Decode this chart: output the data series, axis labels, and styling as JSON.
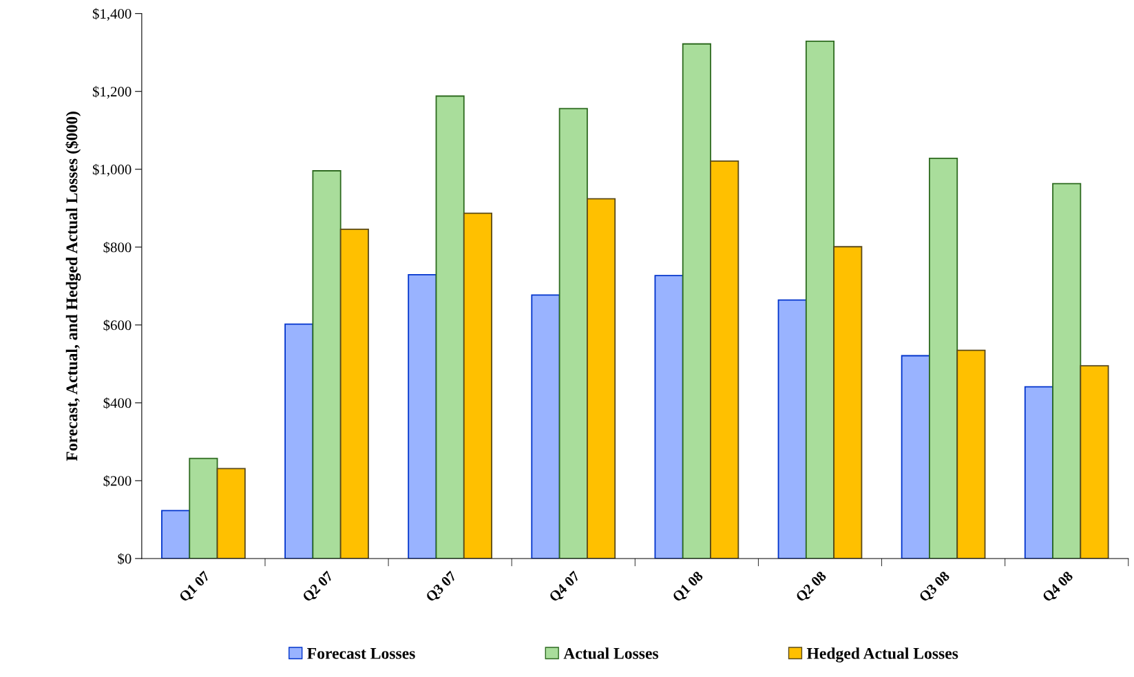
{
  "chart_data": {
    "type": "bar",
    "ylabel": "Forecast, Actual, and Hedged Actual Losses ($000)",
    "categories": [
      "Q1 07",
      "Q2 07",
      "Q3 07",
      "Q4 07",
      "Q1 08",
      "Q2 08",
      "Q3 08",
      "Q4 08"
    ],
    "series": [
      {
        "name": "Forecast Losses",
        "color": "#99b3ff",
        "values": [
          123,
          602,
          729,
          677,
          727,
          664,
          521,
          441
        ]
      },
      {
        "name": "Actual Losses",
        "color": "#a9dd9b",
        "values": [
          257,
          996,
          1188,
          1156,
          1322,
          1329,
          1028,
          963
        ]
      },
      {
        "name": "Hedged Actual Losses",
        "color": "#ffc000",
        "values": [
          231,
          846,
          887,
          924,
          1021,
          801,
          535,
          495
        ]
      }
    ],
    "ylim": [
      0,
      1400
    ],
    "yticks": [
      {
        "value": 0,
        "label": "$0"
      },
      {
        "value": 200,
        "label": "$200"
      },
      {
        "value": 400,
        "label": "$400"
      },
      {
        "value": 600,
        "label": "$600"
      },
      {
        "value": 800,
        "label": "$800"
      },
      {
        "value": 1000,
        "label": "$1,000"
      },
      {
        "value": 1200,
        "label": "$1,200"
      },
      {
        "value": 1400,
        "label": "$1,400"
      }
    ],
    "grid": false,
    "legend": "bottom"
  }
}
